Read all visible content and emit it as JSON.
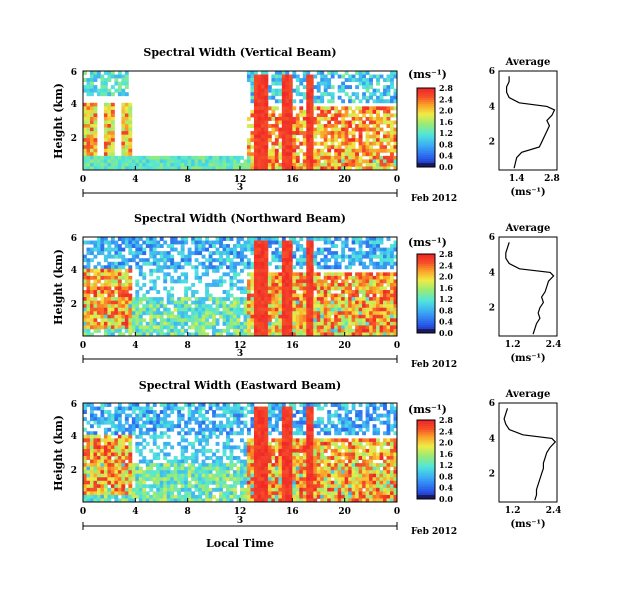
{
  "chart_data": [
    {
      "type": "heatmap",
      "title": "Spectral Width (Vertical Beam)",
      "ylabel": "Height (km)",
      "x_ticks": [
        "0",
        "4",
        "8",
        "12",
        "16",
        "20",
        "0"
      ],
      "y_ticks": [
        "2",
        "4",
        "6"
      ],
      "xlim": [
        0,
        24
      ],
      "ylim": [
        0.4,
        6
      ],
      "day_label": "3",
      "date_label": "Feb 2012",
      "colorbar": {
        "unit": "(ms⁻¹)",
        "ticks": [
          "0.0",
          "0.4",
          "0.8",
          "1.2",
          "1.6",
          "2.0",
          "2.4",
          "2.8"
        ],
        "range": [
          0,
          2.8
        ]
      },
      "profile": {
        "title": "Average",
        "x_ticks": [
          "1.4",
          "2.8"
        ],
        "xlim": [
          0.7,
          3.0
        ],
        "xlabel": "(ms⁻¹)",
        "y_ticks": [
          "2",
          "4",
          "6"
        ],
        "heights": [
          0.5,
          0.8,
          1.1,
          1.4,
          1.7,
          2.0,
          2.3,
          2.6,
          2.9,
          3.2,
          3.5,
          3.8,
          4.0,
          4.2,
          4.5,
          4.8,
          5.1,
          5.4,
          5.7
        ],
        "values": [
          1.3,
          1.35,
          1.4,
          1.6,
          2.3,
          2.4,
          2.5,
          2.6,
          2.7,
          2.6,
          2.8,
          2.9,
          2.6,
          1.5,
          1.1,
          1.0,
          1.0,
          1.1,
          1.1
        ]
      }
    },
    {
      "type": "heatmap",
      "title": "Spectral Width (Northward Beam)",
      "ylabel": "Height (km)",
      "x_ticks": [
        "0",
        "4",
        "8",
        "12",
        "16",
        "20",
        "0"
      ],
      "y_ticks": [
        "2",
        "4",
        "6"
      ],
      "xlim": [
        0,
        24
      ],
      "ylim": [
        0.4,
        6
      ],
      "day_label": "3",
      "date_label": "Feb 2012",
      "colorbar": {
        "unit": "(ms⁻¹)",
        "ticks": [
          "0.0",
          "0.4",
          "0.8",
          "1.2",
          "1.6",
          "2.0",
          "2.4",
          "2.8"
        ],
        "range": [
          0,
          2.8
        ]
      },
      "profile": {
        "title": "Average",
        "x_ticks": [
          "1.2",
          "2.4"
        ],
        "xlim": [
          0.8,
          2.5
        ],
        "xlabel": "(ms⁻¹)",
        "y_ticks": [
          "2",
          "4",
          "6"
        ],
        "heights": [
          0.5,
          0.8,
          1.1,
          1.4,
          1.7,
          2.0,
          2.3,
          2.6,
          2.9,
          3.2,
          3.5,
          3.8,
          4.0,
          4.2,
          4.5,
          4.8,
          5.1,
          5.4,
          5.7
        ],
        "values": [
          1.8,
          1.85,
          1.9,
          2.0,
          1.95,
          2.0,
          2.1,
          2.05,
          2.15,
          2.2,
          2.25,
          2.4,
          2.3,
          1.4,
          1.1,
          1.0,
          1.0,
          1.05,
          1.1
        ]
      }
    },
    {
      "type": "heatmap",
      "title": "Spectral Width (Eastward Beam)",
      "ylabel": "Height (km)",
      "xlabel": "Local Time",
      "x_ticks": [
        "0",
        "4",
        "8",
        "12",
        "16",
        "20",
        "0"
      ],
      "y_ticks": [
        "2",
        "4",
        "6"
      ],
      "xlim": [
        0,
        24
      ],
      "ylim": [
        0.4,
        6
      ],
      "day_label": "3",
      "date_label": "Feb 2012",
      "colorbar": {
        "unit": "(ms⁻¹)",
        "ticks": [
          "0.0",
          "0.4",
          "0.8",
          "1.2",
          "1.6",
          "2.0",
          "2.4",
          "2.8"
        ],
        "range": [
          0,
          2.8
        ]
      },
      "profile": {
        "title": "Average",
        "x_ticks": [
          "1.2",
          "2.4"
        ],
        "xlim": [
          0.8,
          2.5
        ],
        "xlabel": "(ms⁻¹)",
        "y_ticks": [
          "2",
          "4",
          "6"
        ],
        "heights": [
          0.5,
          0.8,
          1.1,
          1.4,
          1.7,
          2.0,
          2.3,
          2.6,
          2.9,
          3.2,
          3.5,
          3.8,
          4.0,
          4.2,
          4.5,
          4.8,
          5.1,
          5.4,
          5.7
        ],
        "values": [
          1.85,
          1.9,
          1.9,
          1.95,
          2.0,
          2.05,
          2.1,
          2.1,
          2.15,
          2.2,
          2.3,
          2.45,
          2.35,
          1.5,
          1.1,
          1.0,
          0.95,
          1.0,
          1.05
        ]
      }
    }
  ]
}
